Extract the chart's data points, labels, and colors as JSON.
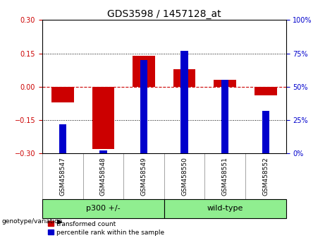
{
  "title": "GDS3598 / 1457128_at",
  "samples": [
    "GSM458547",
    "GSM458548",
    "GSM458549",
    "GSM458550",
    "GSM458551",
    "GSM458552"
  ],
  "transformed_count": [
    -0.07,
    -0.28,
    0.14,
    0.08,
    0.03,
    -0.04
  ],
  "percentile_rank": [
    22,
    2,
    70,
    77,
    55,
    32
  ],
  "ylim_left": [
    -0.3,
    0.3
  ],
  "ylim_right": [
    0,
    100
  ],
  "yticks_left": [
    -0.3,
    -0.15,
    0,
    0.15,
    0.3
  ],
  "yticks_right": [
    0,
    25,
    50,
    75,
    100
  ],
  "bar_color_red": "#cc0000",
  "bar_color_blue": "#0000cc",
  "hline_color": "#cc0000",
  "group_labels": [
    "p300 +/-",
    "wild-type"
  ],
  "group_ranges": [
    [
      0,
      2
    ],
    [
      3,
      5
    ]
  ],
  "group_color": "#90ee90",
  "xlabel_label": "genotype/variation",
  "legend_red": "transformed count",
  "legend_blue": "percentile rank within the sample",
  "red_bar_width": 0.55,
  "blue_bar_width": 0.18,
  "title_fontsize": 10,
  "tick_fontsize": 7,
  "bg_color": "#ffffff",
  "plot_bg_color": "#ffffff",
  "tick_label_color_left": "#cc0000",
  "tick_label_color_right": "#0000cc",
  "label_bg_color": "#d3d3d3"
}
